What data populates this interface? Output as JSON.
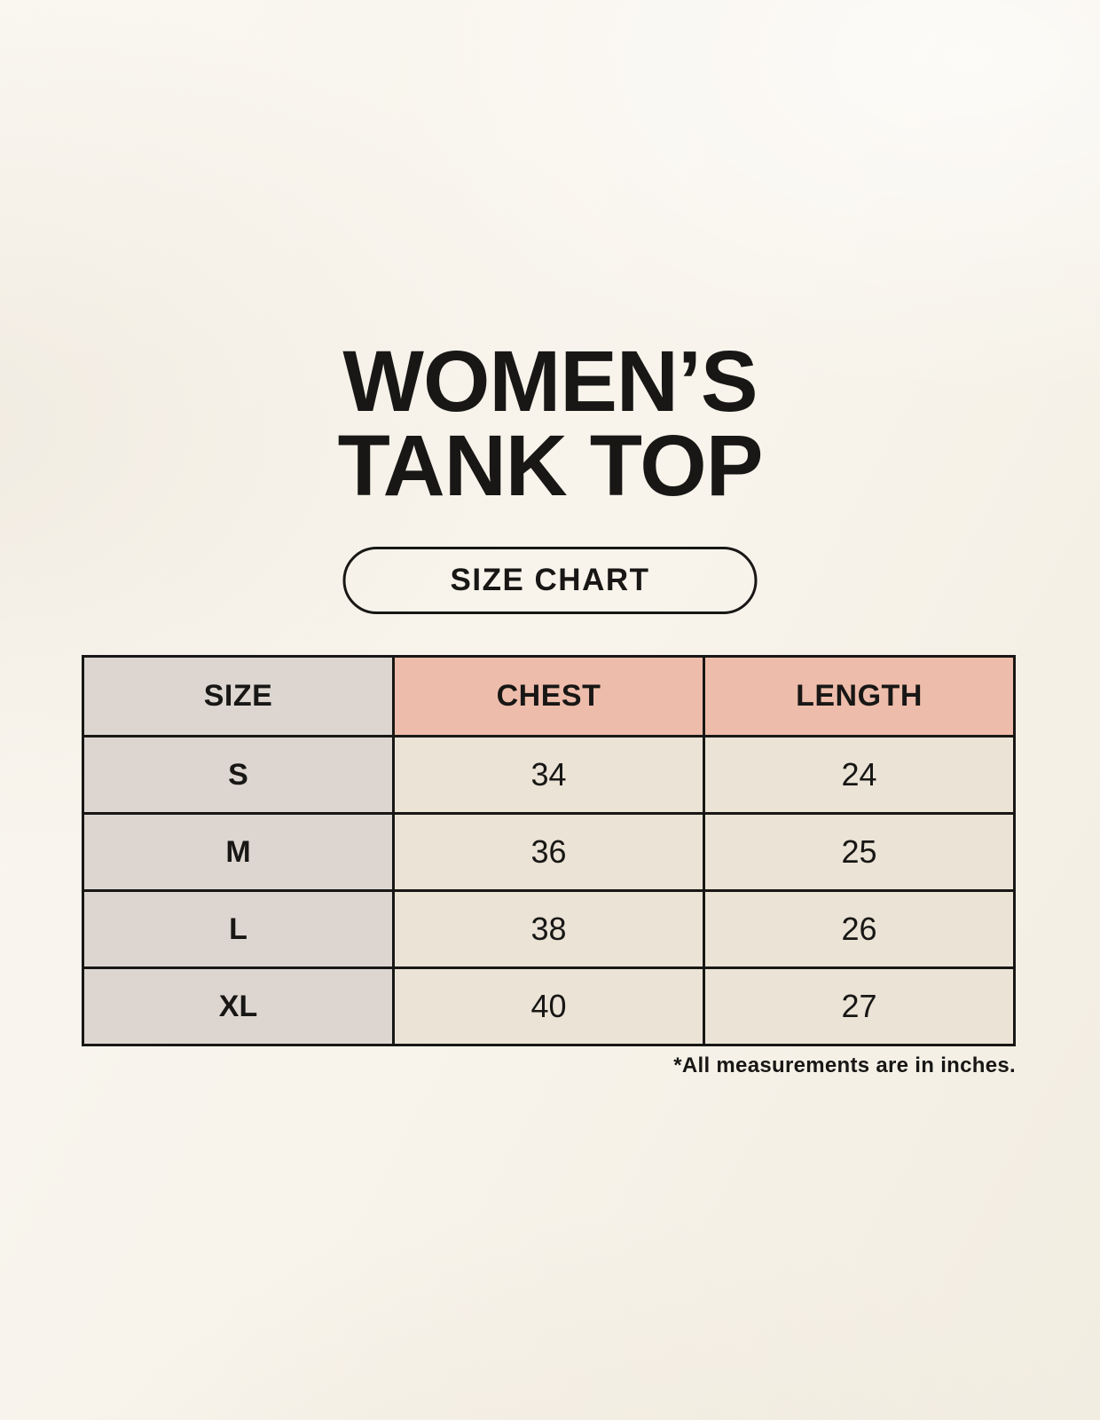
{
  "header": {
    "title_line1": "WOMEN’S",
    "title_line2": "TANK TOP",
    "badge_label": "SIZE CHART"
  },
  "footnote": {
    "text": "*All measurements are in inches."
  },
  "colors": {
    "ink": "#181715",
    "page_bg": "#F8F4EC",
    "accent": "#EEBCAB",
    "size_col_bg": "#DDD6D0",
    "cell_bg": "#EAE3D6"
  },
  "chart_data": {
    "type": "table",
    "title": "WOMEN’S TANK TOP",
    "subtitle": "SIZE CHART",
    "columns": [
      "SIZE",
      "CHEST",
      "LENGTH"
    ],
    "rows": [
      [
        "S",
        "34",
        "24"
      ],
      [
        "M",
        "36",
        "25"
      ],
      [
        "L",
        "38",
        "26"
      ],
      [
        "XL",
        "40",
        "27"
      ]
    ],
    "units": "inches",
    "note": "*All measurements are in inches."
  }
}
